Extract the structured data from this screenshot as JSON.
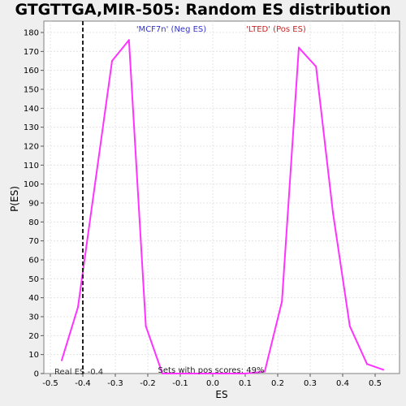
{
  "chart_data": {
    "type": "line",
    "title": "GTGTTGA,MIR-505: Random ES distribution",
    "xlabel": "ES",
    "ylabel": "P(ES)",
    "xlim": [
      -0.52,
      0.575
    ],
    "ylim": [
      0,
      186
    ],
    "x_ticks": [
      -0.5,
      -0.4,
      -0.3,
      -0.2,
      -0.1,
      0.0,
      0.1,
      0.2,
      0.3,
      0.4,
      0.5
    ],
    "x_tick_labels": [
      "-0.5",
      "-0.4",
      "-0.3",
      "-0.2",
      "-0.1",
      "0.0",
      "0.1",
      "0.2",
      "0.3",
      "0.4",
      "0.5"
    ],
    "y_ticks": [
      0,
      10,
      20,
      30,
      40,
      50,
      60,
      70,
      80,
      90,
      100,
      110,
      120,
      130,
      140,
      150,
      160,
      170,
      180
    ],
    "y_tick_labels": [
      "0",
      "10",
      "20",
      "30",
      "40",
      "50",
      "60",
      "70",
      "80",
      "90",
      "100",
      "110",
      "120",
      "130",
      "140",
      "150",
      "160",
      "170",
      "180"
    ],
    "grid": true,
    "line_color": "#ff33ff",
    "x": [
      -0.465,
      -0.415,
      -0.31,
      -0.258,
      -0.206,
      -0.155,
      -0.1,
      -0.05,
      0.0,
      0.05,
      0.1,
      0.16,
      0.213,
      0.265,
      0.318,
      0.37,
      0.422,
      0.475,
      0.525
    ],
    "y": [
      7,
      35,
      165,
      176,
      25,
      0,
      0,
      0,
      0,
      0,
      0,
      1,
      38,
      172,
      162,
      85,
      25,
      5,
      2
    ],
    "real_es": -0.4,
    "real_es_label": "Real ES -0.4",
    "annotations": {
      "neg_label": "'MCF7n' (Neg ES)",
      "neg_color": "#3333cc",
      "pos_label": "'LTED' (Pos ES)",
      "pos_color": "#cc2222",
      "sets_text": "Sets with pos scores: 49%"
    }
  }
}
